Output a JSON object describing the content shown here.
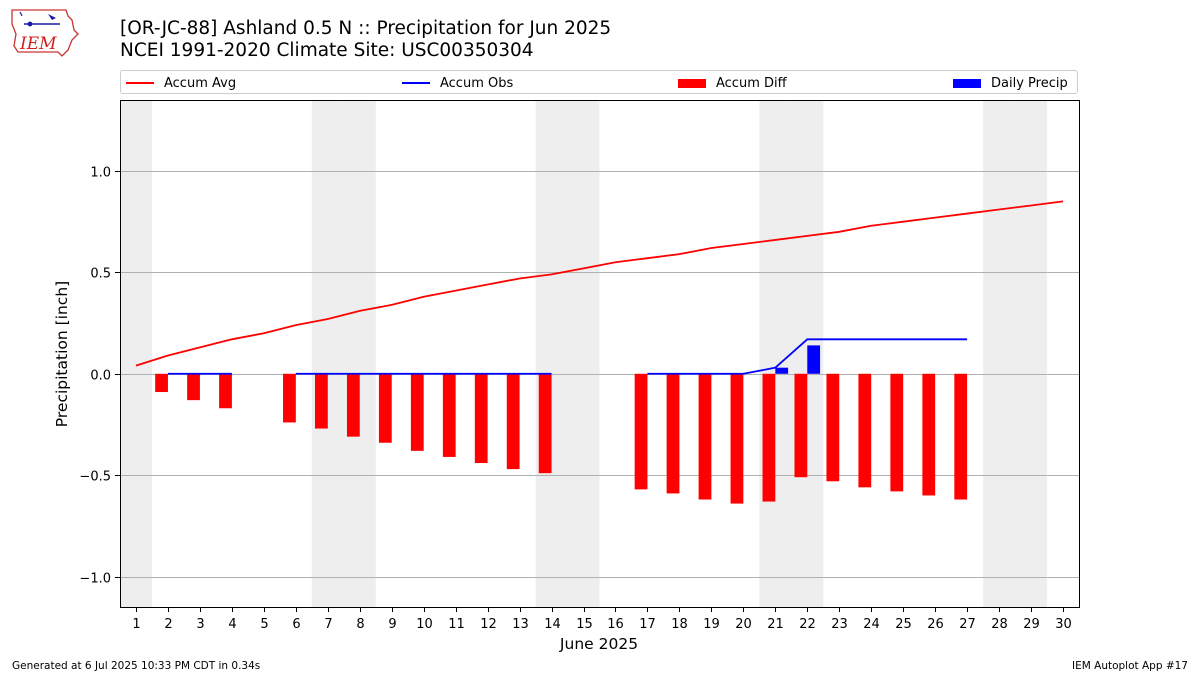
{
  "header": {
    "title": "[OR-JC-88] Ashland 0.5 N :: Precipitation for Jun 2025",
    "subtitle": "NCEI 1991-2020 Climate Site: USC00350304"
  },
  "logo": {
    "text": "IEM"
  },
  "footer": {
    "left": "Generated at 6 Jul 2025 10:33 PM CDT in 0.34s",
    "right": "IEM Autoplot App #17"
  },
  "colors": {
    "avg": "#ff0000",
    "obs": "#0000ff",
    "diff": "#ff0000",
    "daily": "#0000ff",
    "weekend": "#eeeeee",
    "grid": "#b0b0b0"
  },
  "legend": [
    {
      "label": "Accum Avg",
      "kind": "line",
      "color": "#ff0000"
    },
    {
      "label": "Accum Obs",
      "kind": "line",
      "color": "#0000ff"
    },
    {
      "label": "Accum Diff",
      "kind": "bar",
      "color": "#ff0000"
    },
    {
      "label": "Daily Precip",
      "kind": "bar",
      "color": "#0000ff"
    }
  ],
  "chart_data": {
    "type": "bar",
    "xlabel": "June 2025",
    "ylabel": "Precipitation [inch]",
    "xlim": [
      0.5,
      30.5
    ],
    "ylim": [
      -1.15,
      1.35
    ],
    "yticks": [
      -1.0,
      -0.5,
      0.0,
      0.5,
      1.0
    ],
    "ytick_labels": [
      "−1.0",
      "−0.5",
      "0.0",
      "0.5",
      "1.0"
    ],
    "xticks": [
      1,
      2,
      3,
      4,
      5,
      6,
      7,
      8,
      9,
      10,
      11,
      12,
      13,
      14,
      15,
      16,
      17,
      18,
      19,
      20,
      21,
      22,
      23,
      24,
      25,
      26,
      27,
      28,
      29,
      30
    ],
    "grid": "horizontal",
    "weekend_days": [
      1,
      7,
      8,
      14,
      15,
      21,
      22,
      28,
      29
    ],
    "series": [
      {
        "name": "Accum Avg",
        "type": "line",
        "x": [
          1,
          2,
          3,
          4,
          5,
          6,
          7,
          8,
          9,
          10,
          11,
          12,
          13,
          14,
          15,
          16,
          17,
          18,
          19,
          20,
          21,
          22,
          23,
          24,
          25,
          26,
          27,
          28,
          29,
          30
        ],
        "values": [
          0.04,
          0.09,
          0.13,
          0.17,
          0.2,
          0.24,
          0.27,
          0.31,
          0.34,
          0.38,
          0.41,
          0.44,
          0.47,
          0.49,
          0.52,
          0.55,
          0.57,
          0.59,
          0.62,
          0.64,
          0.66,
          0.68,
          0.7,
          0.73,
          0.75,
          0.77,
          0.79,
          0.81,
          0.83,
          0.85
        ]
      },
      {
        "name": "Accum Obs",
        "type": "line",
        "segments": [
          {
            "x": [
              2,
              3,
              4
            ],
            "values": [
              0,
              0,
              0
            ]
          },
          {
            "x": [
              6,
              7,
              8,
              9,
              10,
              11,
              12,
              13,
              14
            ],
            "values": [
              0,
              0,
              0,
              0,
              0,
              0,
              0,
              0,
              0
            ]
          },
          {
            "x": [
              17,
              18,
              19,
              20,
              21,
              22,
              23,
              24,
              25,
              26,
              27
            ],
            "values": [
              0,
              0,
              0,
              0,
              0.03,
              0.17,
              0.17,
              0.17,
              0.17,
              0.17,
              0.17
            ]
          }
        ]
      },
      {
        "name": "Accum Diff",
        "type": "bar",
        "x": [
          2,
          3,
          4,
          6,
          7,
          8,
          9,
          10,
          11,
          12,
          13,
          14,
          17,
          18,
          19,
          20,
          21,
          22,
          23,
          24,
          25,
          26,
          27
        ],
        "values": [
          -0.09,
          -0.13,
          -0.17,
          -0.24,
          -0.27,
          -0.31,
          -0.34,
          -0.38,
          -0.41,
          -0.44,
          -0.47,
          -0.49,
          -0.57,
          -0.59,
          -0.62,
          -0.64,
          -0.63,
          -0.51,
          -0.53,
          -0.56,
          -0.58,
          -0.6,
          -0.62
        ]
      },
      {
        "name": "Daily Precip",
        "type": "bar",
        "x": [
          21,
          22
        ],
        "values": [
          0.03,
          0.14
        ]
      }
    ]
  }
}
